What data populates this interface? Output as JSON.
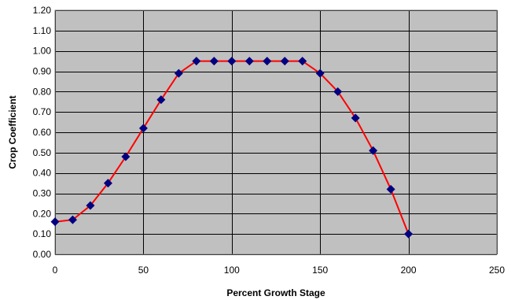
{
  "chart_data": {
    "type": "line",
    "title": "",
    "xlabel": "Percent Growth Stage",
    "ylabel": "Crop Coefficient",
    "xlim": [
      0,
      250
    ],
    "ylim": [
      0,
      1.2
    ],
    "x_ticks": [
      0,
      50,
      100,
      150,
      200,
      250
    ],
    "x_tick_labels": [
      "0",
      "50",
      "100",
      "150",
      "200",
      "250"
    ],
    "y_ticks": [
      0,
      0.1,
      0.2,
      0.3,
      0.4,
      0.5,
      0.6,
      0.7,
      0.8,
      0.9,
      1.0,
      1.1,
      1.2
    ],
    "y_tick_labels": [
      "0.00",
      "0.10",
      "0.20",
      "0.30",
      "0.40",
      "0.50",
      "0.60",
      "0.70",
      "0.80",
      "0.90",
      "1.00",
      "1.10",
      "1.20"
    ],
    "grid": true,
    "legend": "none",
    "series": [
      {
        "x": [
          0,
          10,
          20,
          30,
          40,
          50,
          60,
          70,
          80,
          90,
          100,
          110,
          120,
          130,
          140,
          150,
          160,
          170,
          180,
          190,
          200
        ],
        "y": [
          0.16,
          0.17,
          0.24,
          0.35,
          0.48,
          0.62,
          0.76,
          0.89,
          0.95,
          0.95,
          0.95,
          0.95,
          0.95,
          0.95,
          0.95,
          0.89,
          0.8,
          0.67,
          0.51,
          0.32,
          0.1
        ],
        "line_color": "#ff0000",
        "marker": "diamond",
        "marker_color": "#000080"
      }
    ],
    "colors": {
      "plot_background": "#c0c0c0",
      "grid": "#000000"
    }
  }
}
